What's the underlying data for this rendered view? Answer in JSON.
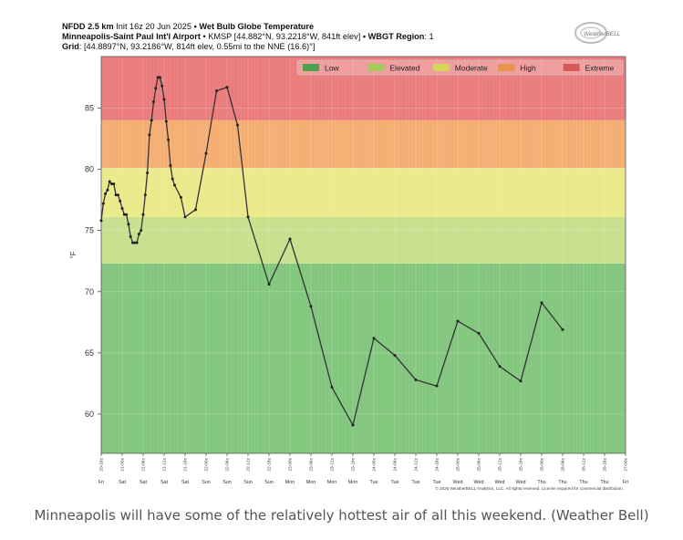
{
  "header": {
    "line1": {
      "model": "NFDD 2.5 km",
      "init": "Init 16z 20 Jun 2025",
      "bullet": "•",
      "product": "Wet Bulb Globe Temperature"
    },
    "line2": {
      "station": "Minneapolis-Saint Paul Int'l Airport",
      "station_info": "• KMSP [44.882°N, 93.2218°W, 841ft elev]",
      "bullet": "•",
      "region_label": "WBGT Region",
      "region_value": ": 1"
    },
    "line3": {
      "grid_label": "Grid",
      "grid_value": ": [44.8897°N, 93.2186°W, 814ft elev, 0.55mi to the NNE (16.6)°]"
    }
  },
  "logo": {
    "text": "WeatherBELL"
  },
  "caption": "Minneapolis will have some of the relatively hottest air of all this weekend. (Weather Bell)",
  "copyright": "© 2025 WeatherBELL Analytics, LLC. All rights reserved. License required for commercial distribution.",
  "chart_data": {
    "type": "line",
    "ylabel": "°F",
    "ylim": [
      56.8,
      89.2
    ],
    "yticks": [
      60,
      65,
      70,
      75,
      80,
      85
    ],
    "bands": [
      {
        "name": "Low",
        "from": 56.8,
        "to": 72.3,
        "color": "#83c77f",
        "legend_color": "#4da24d"
      },
      {
        "name": "Elevated",
        "from": 72.3,
        "to": 76.1,
        "color": "#c7e08e",
        "legend_color": "#a5c95c"
      },
      {
        "name": "Moderate",
        "from": 76.1,
        "to": 80.1,
        "color": "#eaea8a",
        "legend_color": "#d3d65a"
      },
      {
        "name": "High",
        "from": 80.1,
        "to": 84.0,
        "color": "#f5ae72",
        "legend_color": "#e8934e"
      },
      {
        "name": "Extreme",
        "from": 84.0,
        "to": 89.2,
        "color": "#ea7c7c",
        "legend_color": "#d65a5a"
      }
    ],
    "legend_placement": "top-right",
    "grid": true,
    "x_start": "20-18z",
    "x_step_hours": 1,
    "x_range_hours": [
      0,
      150
    ],
    "x_ticks": [
      {
        "h": 0,
        "label": "20-18z",
        "day": "Fri"
      },
      {
        "h": 6,
        "label": "21-00z",
        "day": "Sat"
      },
      {
        "h": 12,
        "label": "21-06z",
        "day": "Sat"
      },
      {
        "h": 18,
        "label": "21-12z",
        "day": "Sat"
      },
      {
        "h": 24,
        "label": "21-18z",
        "day": "Sat"
      },
      {
        "h": 30,
        "label": "22-00z",
        "day": "Sun"
      },
      {
        "h": 36,
        "label": "22-06z",
        "day": "Sun"
      },
      {
        "h": 42,
        "label": "22-12z",
        "day": "Sun"
      },
      {
        "h": 48,
        "label": "22-18z",
        "day": "Sun"
      },
      {
        "h": 54,
        "label": "23-00z",
        "day": "Mon"
      },
      {
        "h": 60,
        "label": "23-06z",
        "day": "Mon"
      },
      {
        "h": 66,
        "label": "23-12z",
        "day": "Mon"
      },
      {
        "h": 72,
        "label": "23-18z",
        "day": "Mon"
      },
      {
        "h": 78,
        "label": "24-00z",
        "day": "Tue"
      },
      {
        "h": 84,
        "label": "24-06z",
        "day": "Tue"
      },
      {
        "h": 90,
        "label": "24-12z",
        "day": "Tue"
      },
      {
        "h": 96,
        "label": "24-18z",
        "day": "Tue"
      },
      {
        "h": 102,
        "label": "25-00z",
        "day": "Wed"
      },
      {
        "h": 108,
        "label": "25-06z",
        "day": "Wed"
      },
      {
        "h": 114,
        "label": "25-12z",
        "day": "Wed"
      },
      {
        "h": 120,
        "label": "25-18z",
        "day": "Wed"
      },
      {
        "h": 126,
        "label": "26-00z",
        "day": "Thu"
      },
      {
        "h": 132,
        "label": "26-06z",
        "day": "Thu"
      },
      {
        "h": 138,
        "label": "26-12z",
        "day": "Thu"
      },
      {
        "h": 144,
        "label": "26-18z",
        "day": "Thu"
      },
      {
        "h": 150,
        "label": "27-00z",
        "day": "Fri"
      }
    ],
    "series": [
      {
        "color": "#333333",
        "points": [
          [
            0,
            75.8
          ],
          [
            0.6,
            77.2
          ],
          [
            1.2,
            78.0
          ],
          [
            1.8,
            78.3
          ],
          [
            2.4,
            79.0
          ],
          [
            3.0,
            78.8
          ],
          [
            3.6,
            78.8
          ],
          [
            4.2,
            77.9
          ],
          [
            4.8,
            77.9
          ],
          [
            5.4,
            77.4
          ],
          [
            6.0,
            76.8
          ],
          [
            6.6,
            76.3
          ],
          [
            7.2,
            76.3
          ],
          [
            7.8,
            75.5
          ],
          [
            8.4,
            74.5
          ],
          [
            9.0,
            74.0
          ],
          [
            9.6,
            74.0
          ],
          [
            10.2,
            74.0
          ],
          [
            10.8,
            74.7
          ],
          [
            11.4,
            75.0
          ],
          [
            12.0,
            76.3
          ],
          [
            12.6,
            77.9
          ],
          [
            13.2,
            79.7
          ],
          [
            13.8,
            82.8
          ],
          [
            14.4,
            84.0
          ],
          [
            15.0,
            85.5
          ],
          [
            15.6,
            86.6
          ],
          [
            16.2,
            87.5
          ],
          [
            16.8,
            87.5
          ],
          [
            17.4,
            86.8
          ],
          [
            18.0,
            85.7
          ],
          [
            18.6,
            83.9
          ],
          [
            19.2,
            82.4
          ],
          [
            19.8,
            80.3
          ],
          [
            20.4,
            79.2
          ],
          [
            21.0,
            78.7
          ],
          [
            22.8,
            77.7
          ],
          [
            24.0,
            76.1
          ],
          [
            27.0,
            76.7
          ],
          [
            30.0,
            81.3
          ],
          [
            33.0,
            86.4
          ],
          [
            36.0,
            86.7
          ],
          [
            39.0,
            83.6
          ],
          [
            42.0,
            76.1
          ],
          [
            48.0,
            70.6
          ],
          [
            54.0,
            74.3
          ],
          [
            60.0,
            68.8
          ],
          [
            66.0,
            62.2
          ],
          [
            72.0,
            59.1
          ],
          [
            78.0,
            66.2
          ],
          [
            84.0,
            64.8
          ],
          [
            90.0,
            62.8
          ],
          [
            96.0,
            62.3
          ],
          [
            102.0,
            67.6
          ],
          [
            108.0,
            66.6
          ],
          [
            114.0,
            63.9
          ],
          [
            120.0,
            62.7
          ],
          [
            126.0,
            69.1
          ],
          [
            132.0,
            66.9
          ]
        ]
      }
    ]
  }
}
